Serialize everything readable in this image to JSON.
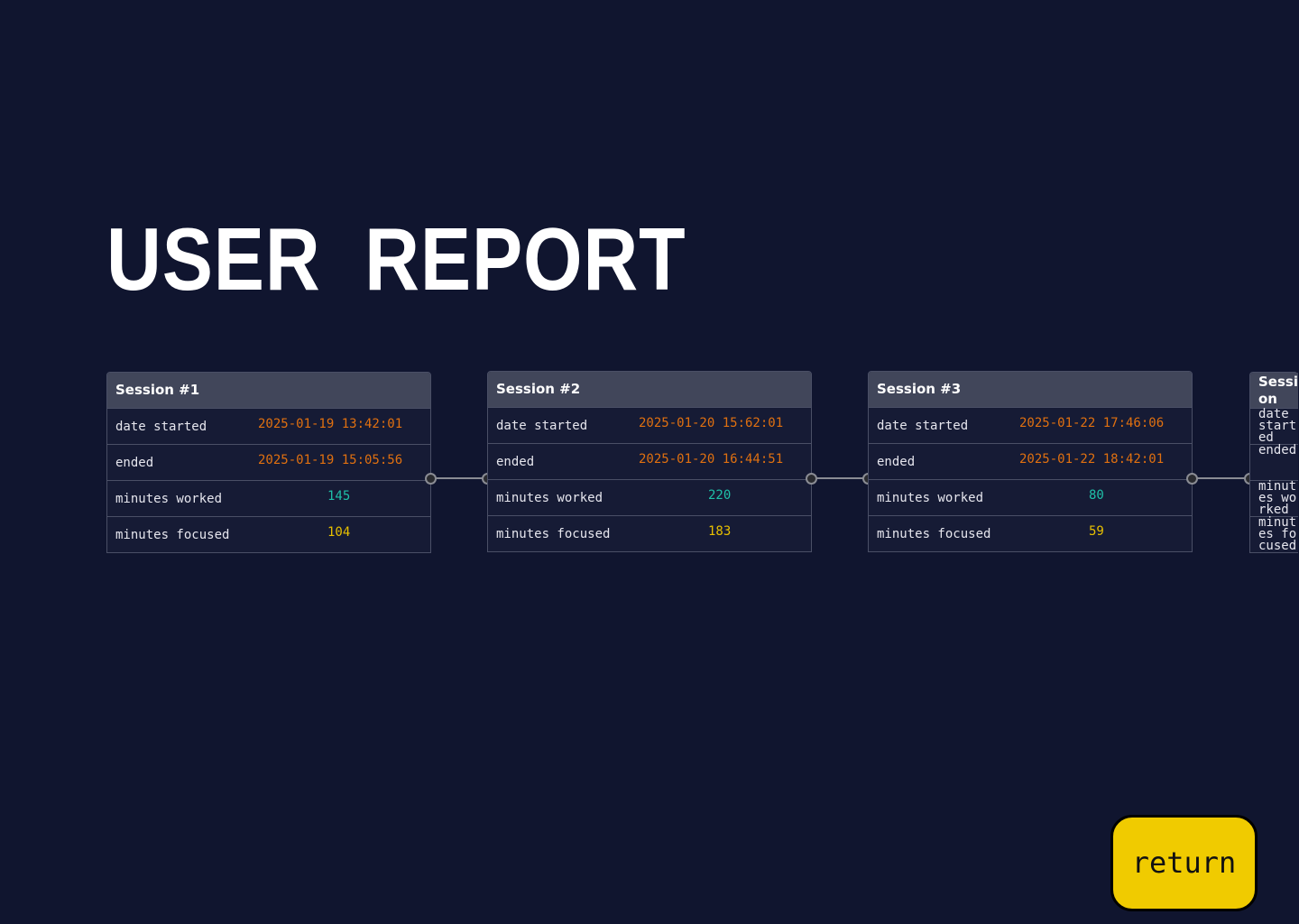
{
  "title": "USER  REPORT",
  "labels": {
    "date_started": "date started",
    "ended": "ended",
    "minutes_worked": "minutes worked",
    "minutes_focused": "minutes focused"
  },
  "sessions": [
    {
      "title": "Session #1",
      "date_started": "2025-01-19 13:42:01",
      "ended": "2025-01-19 15:05:56",
      "minutes_worked": "145",
      "minutes_focused": "104"
    },
    {
      "title": "Session #2",
      "date_started": "2025-01-20 15:62:01",
      "ended": "2025-01-20 16:44:51",
      "minutes_worked": "220",
      "minutes_focused": "183"
    },
    {
      "title": "Session #3",
      "date_started": "2025-01-22 17:46:06",
      "ended": "2025-01-22 18:42:01",
      "minutes_worked": "80",
      "minutes_focused": "59"
    },
    {
      "title": "Session"
    }
  ],
  "return_button": "return",
  "colors": {
    "background": "#10152f",
    "date": "#e07010",
    "worked": "#1fc0a8",
    "focused": "#e8c000",
    "button": "#f0cb00"
  }
}
